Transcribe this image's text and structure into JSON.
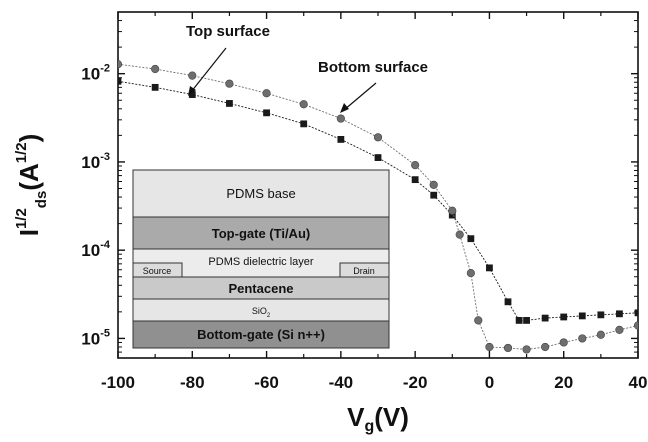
{
  "chart_data": {
    "type": "scatter",
    "title": "",
    "xlabel": {
      "main": "V",
      "sub": "g",
      "rest": "(V)"
    },
    "ylabel": {
      "main": "I",
      "sup1": "1/2",
      "sub": "ds",
      "open": "(A",
      "sup2": "1/2",
      "close": ")"
    },
    "xlim": [
      -100,
      40
    ],
    "ylim": [
      6e-06,
      0.05
    ],
    "yscale": "log",
    "x_ticks": [
      -100,
      -80,
      -60,
      -40,
      -20,
      0,
      20,
      40
    ],
    "x_tick_labels": [
      "-100",
      "-80",
      "-60",
      "-40",
      "-20",
      "0",
      "20",
      "40"
    ],
    "y_ticks": [
      1e-05,
      0.0001,
      0.001,
      0.01
    ],
    "y_tick_labels": [
      {
        "base": "10",
        "exp": "-5"
      },
      {
        "base": "10",
        "exp": "-4"
      },
      {
        "base": "10",
        "exp": "-3"
      },
      {
        "base": "10",
        "exp": "-2"
      }
    ],
    "grid": false,
    "series": [
      {
        "name": "Top surface",
        "marker": "square",
        "color": "#1a1a1a",
        "x": [
          -100,
          -90,
          -80,
          -70,
          -60,
          -50,
          -40,
          -30,
          -20,
          -15,
          -10,
          -5,
          0,
          5,
          8,
          10,
          15,
          20,
          25,
          30,
          35,
          40
        ],
        "y": [
          0.0082,
          0.007,
          0.0058,
          0.0046,
          0.0036,
          0.0027,
          0.0018,
          0.00112,
          0.00063,
          0.00042,
          0.00025,
          0.000135,
          6.3e-05,
          2.6e-05,
          1.6e-05,
          1.6e-05,
          1.7e-05,
          1.75e-05,
          1.8e-05,
          1.85e-05,
          1.9e-05,
          1.95e-05
        ]
      },
      {
        "name": "Bottom surface",
        "marker": "circle",
        "color": "#6e6e6e",
        "x": [
          -100,
          -90,
          -80,
          -70,
          -60,
          -50,
          -40,
          -30,
          -20,
          -15,
          -10,
          -8,
          -5,
          -3,
          0,
          5,
          10,
          15,
          20,
          25,
          30,
          35,
          40
        ],
        "y": [
          0.0128,
          0.0113,
          0.0095,
          0.0077,
          0.006,
          0.0045,
          0.0031,
          0.0019,
          0.00092,
          0.00055,
          0.00028,
          0.00015,
          5.5e-05,
          1.6e-05,
          8e-06,
          7.8e-06,
          7.5e-06,
          8e-06,
          9e-06,
          1e-05,
          1.1e-05,
          1.25e-05,
          1.4e-05
        ]
      }
    ],
    "annotations": [
      {
        "text": "Top surface"
      },
      {
        "text": "Bottom surface"
      }
    ]
  },
  "inset": {
    "layers": [
      {
        "label": "PDMS base",
        "color": "#e6e6e6"
      },
      {
        "label": "Top-gate (Ti/Au)",
        "color": "#aaaaaa"
      },
      {
        "label": "PDMS dielectric layer",
        "color": "#ececec"
      },
      {
        "label": "Pentacene",
        "color": "#c9c9c9"
      },
      {
        "label": "SiO",
        "sub": "2",
        "color": "#e6e6e6"
      },
      {
        "label": "Bottom-gate (Si n++)",
        "color": "#909090"
      }
    ],
    "contacts": [
      {
        "label": "Source"
      },
      {
        "label": "Drain"
      }
    ]
  }
}
